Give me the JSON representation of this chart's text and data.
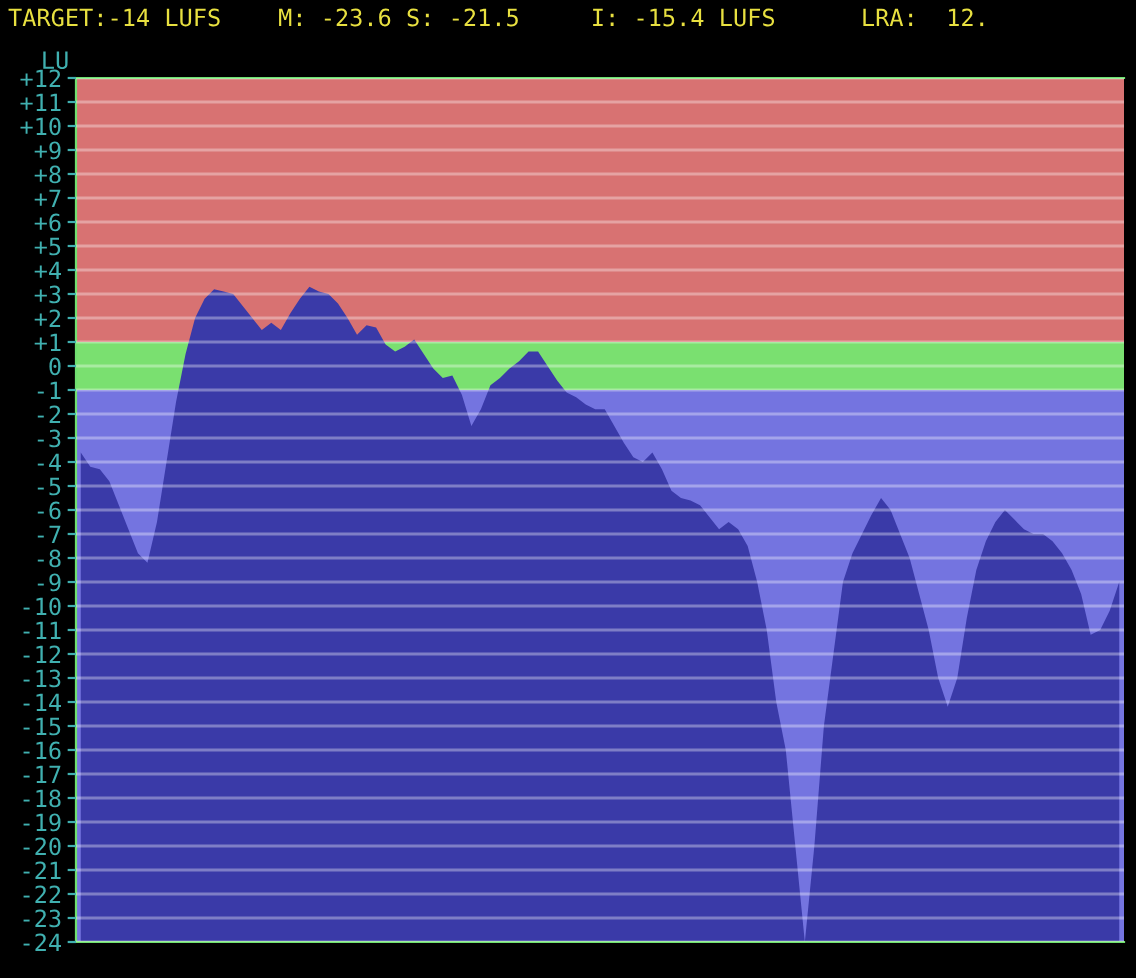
{
  "chart_data": {
    "type": "area",
    "title": "TARGET:-14 LUFS    M: -23.6 S: -21.5     I: -15.4 LUFS      LRA:  12.",
    "ylabel": "LU",
    "categories": [
      null,
      null,
      null,
      null,
      null,
      null,
      null,
      null,
      null,
      null,
      null,
      null,
      null,
      null,
      null,
      null,
      null,
      null,
      null,
      null,
      null,
      null,
      null,
      null,
      null,
      null,
      null,
      null,
      null,
      null,
      null,
      null,
      null,
      null,
      null,
      null,
      null,
      null,
      null,
      null,
      null,
      null,
      null,
      null,
      null,
      null,
      null,
      null,
      null,
      null,
      null,
      null,
      null,
      null,
      null,
      null,
      null,
      null,
      null,
      null,
      null,
      null,
      null,
      null,
      null,
      null,
      null,
      null,
      null,
      null,
      null,
      null,
      null,
      null,
      null,
      null,
      null,
      null,
      null,
      null,
      null,
      null,
      null,
      null,
      null,
      null,
      null,
      null,
      null,
      null,
      null,
      null,
      null,
      null,
      null,
      null,
      null,
      null,
      null,
      null,
      null,
      null,
      null,
      null,
      null,
      null,
      null,
      null,
      null,
      null
    ],
    "series": [
      {
        "color": "#3a3aa8",
        "values": [
          -3.6,
          -4.2,
          -4.3,
          -4.8,
          -5.8,
          -6.8,
          -7.8,
          -8.2,
          -6.5,
          -4.0,
          -1.5,
          0.5,
          2.0,
          2.8,
          3.2,
          3.1,
          3.0,
          2.5,
          2.0,
          1.5,
          1.8,
          1.5,
          2.2,
          2.8,
          3.3,
          3.1,
          3.0,
          2.6,
          2.0,
          1.3,
          1.7,
          1.6,
          0.9,
          0.6,
          0.8,
          1.1,
          0.5,
          -0.1,
          -0.5,
          -0.4,
          -1.2,
          -2.5,
          -1.8,
          -0.8,
          -0.5,
          -0.1,
          0.2,
          0.6,
          0.6,
          0.0,
          -0.6,
          -1.1,
          -1.3,
          -1.6,
          -1.8,
          -1.8,
          -2.5,
          -3.2,
          -3.8,
          -4.0,
          -3.6,
          -4.3,
          -5.2,
          -5.5,
          -5.6,
          -5.8,
          -6.3,
          -6.8,
          -6.5,
          -6.8,
          -7.5,
          -9,
          -11,
          -14,
          -16,
          -20,
          -24,
          -20,
          -15,
          -12,
          -9,
          -7.8,
          -7.0,
          -6.2,
          -5.5,
          -6.0,
          -7.0,
          -8.0,
          -9.5,
          -11,
          -13,
          -14.2,
          -13,
          -10.5,
          -8.5,
          -7.3,
          -6.5,
          -6.0,
          -6.4,
          -6.8,
          -7.0,
          -7.0,
          -7.3,
          -7.8,
          -8.5,
          -9.5,
          -11.2,
          -11.0,
          -10.2,
          -9.0
        ]
      }
    ],
    "ylim": [
      -24,
      12
    ],
    "yticks": [
      -24,
      -23,
      -22,
      -21,
      -20,
      -19,
      -18,
      -17,
      -16,
      -15,
      -14,
      -13,
      -12,
      -11,
      -10,
      -9,
      -8,
      -7,
      -6,
      -5,
      -4,
      -3,
      -2,
      -1,
      0,
      {
        "value": 1,
        "label": "+1"
      },
      {
        "value": 2,
        "label": "+2"
      },
      {
        "value": 3,
        "label": "+3"
      },
      {
        "value": 4,
        "label": "+4"
      },
      {
        "value": 5,
        "label": "+5"
      },
      {
        "value": 6,
        "label": "+6"
      },
      {
        "value": 7,
        "label": "+7"
      },
      {
        "value": 8,
        "label": "+8"
      },
      {
        "value": 9,
        "label": "+9"
      },
      {
        "value": 10,
        "label": "+10"
      },
      {
        "value": 11,
        "label": "+11"
      },
      {
        "value": 12,
        "label": "+12"
      }
    ],
    "bands": [
      {
        "axis": "y",
        "from": 1,
        "to": 12,
        "color": "#d87272"
      },
      {
        "axis": "y",
        "from": -1,
        "to": 1,
        "color": "#7ae070"
      },
      {
        "axis": "y",
        "from": -24,
        "to": -1,
        "color": "#7474e0"
      }
    ],
    "grid": "y",
    "tick_labels": "y",
    "legend": false
  }
}
